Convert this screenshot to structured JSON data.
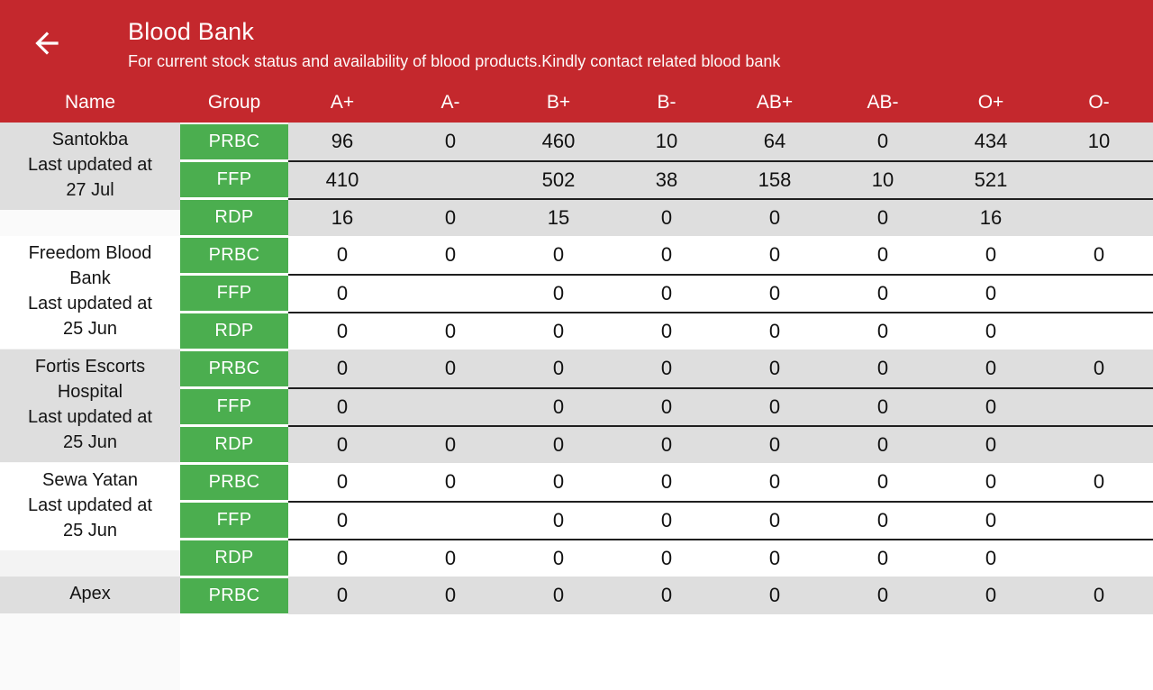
{
  "colors": {
    "appbar_red": "#C4282D",
    "group_green": "#4BAE4F",
    "row_gray": "#DEDEDE",
    "row_white": "#FFFFFF",
    "name_filler_after_gray": "#FAFAFA",
    "name_filler_after_white": "#F3F3F3",
    "row_separator": "#1F1F1F",
    "text_dark": "#111111",
    "text_light": "#FFFFFF"
  },
  "appbar": {
    "title": "Blood Bank",
    "subtitle": "For current stock status and availability of blood products.Kindly contact related blood bank",
    "back_icon": "arrow-left-icon"
  },
  "table": {
    "columns": [
      "Name",
      "Group",
      "A+",
      "A-",
      "B+",
      "B-",
      "AB+",
      "AB-",
      "O+",
      "O-"
    ],
    "banks": [
      {
        "name": "Santokba",
        "updated_label": "Last updated at",
        "updated_date": "27 Jul",
        "shade": "gray",
        "rows": [
          {
            "group": "PRBC",
            "values": [
              "96",
              "0",
              "460",
              "10",
              "64",
              "0",
              "434",
              "10"
            ]
          },
          {
            "group": "FFP",
            "values": [
              "410",
              "",
              "502",
              "38",
              "158",
              "10",
              "521",
              ""
            ]
          },
          {
            "group": "RDP",
            "values": [
              "16",
              "0",
              "15",
              "0",
              "0",
              "0",
              "16",
              ""
            ]
          }
        ]
      },
      {
        "name": "Freedom Blood Bank",
        "updated_label": "Last updated at",
        "updated_date": "25 Jun",
        "shade": "white",
        "rows": [
          {
            "group": "PRBC",
            "values": [
              "0",
              "0",
              "0",
              "0",
              "0",
              "0",
              "0",
              "0"
            ]
          },
          {
            "group": "FFP",
            "values": [
              "0",
              "",
              "0",
              "0",
              "0",
              "0",
              "0",
              ""
            ]
          },
          {
            "group": "RDP",
            "values": [
              "0",
              "0",
              "0",
              "0",
              "0",
              "0",
              "0",
              ""
            ]
          }
        ]
      },
      {
        "name": "Fortis Escorts Hospital",
        "updated_label": "Last updated at",
        "updated_date": "25 Jun",
        "shade": "gray",
        "rows": [
          {
            "group": "PRBC",
            "values": [
              "0",
              "0",
              "0",
              "0",
              "0",
              "0",
              "0",
              "0"
            ]
          },
          {
            "group": "FFP",
            "values": [
              "0",
              "",
              "0",
              "0",
              "0",
              "0",
              "0",
              ""
            ]
          },
          {
            "group": "RDP",
            "values": [
              "0",
              "0",
              "0",
              "0",
              "0",
              "0",
              "0",
              ""
            ]
          }
        ]
      },
      {
        "name": "Sewa Yatan",
        "updated_label": "Last updated at",
        "updated_date": "25 Jun",
        "shade": "white",
        "rows": [
          {
            "group": "PRBC",
            "values": [
              "0",
              "0",
              "0",
              "0",
              "0",
              "0",
              "0",
              "0"
            ]
          },
          {
            "group": "FFP",
            "values": [
              "0",
              "",
              "0",
              "0",
              "0",
              "0",
              "0",
              ""
            ]
          },
          {
            "group": "RDP",
            "values": [
              "0",
              "0",
              "0",
              "0",
              "0",
              "0",
              "0",
              ""
            ]
          }
        ]
      },
      {
        "name": "Apex",
        "updated_label": "",
        "updated_date": "",
        "shade": "gray",
        "rows": [
          {
            "group": "PRBC",
            "values": [
              "0",
              "0",
              "0",
              "0",
              "0",
              "0",
              "0",
              "0"
            ]
          }
        ]
      }
    ]
  }
}
